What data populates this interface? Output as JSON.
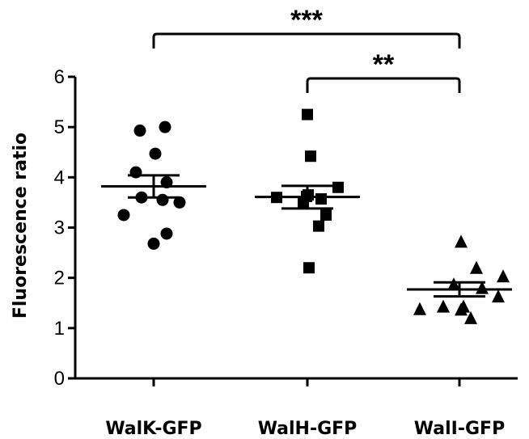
{
  "chart_data": {
    "type": "scatter",
    "ylabel": "Fluorescence ratio",
    "xlabel": "",
    "ylim": [
      0,
      6
    ],
    "yticks": [
      0,
      1,
      2,
      3,
      4,
      5,
      6
    ],
    "grid": false,
    "legend": "none",
    "categories": [
      "WalK-GFP",
      "WalH-GFP",
      "WalI-GFP"
    ],
    "series": [
      {
        "marker": "circle",
        "values": [
          5.0,
          4.93,
          4.47,
          4.1,
          3.9,
          3.6,
          3.55,
          3.5,
          3.25,
          2.88,
          2.68
        ],
        "mean": 3.82,
        "sem_low": 3.6,
        "sem_high": 4.04
      },
      {
        "marker": "square",
        "values": [
          5.25,
          4.42,
          3.8,
          3.65,
          3.62,
          3.6,
          3.57,
          3.5,
          3.25,
          3.03,
          2.2
        ],
        "mean": 3.61,
        "sem_low": 3.38,
        "sem_high": 3.83
      },
      {
        "marker": "triangle",
        "values": [
          2.72,
          2.2,
          2.03,
          1.87,
          1.8,
          1.63,
          1.43,
          1.43,
          1.38,
          1.37,
          1.2
        ],
        "mean": 1.77,
        "sem_low": 1.63,
        "sem_high": 1.91
      }
    ],
    "significance": [
      {
        "from": 0,
        "to": 2,
        "label": "***"
      },
      {
        "from": 1,
        "to": 2,
        "label": "**"
      }
    ],
    "colors": {
      "marker": "#000000",
      "axis": "#000000",
      "background": "#ffffff"
    }
  }
}
